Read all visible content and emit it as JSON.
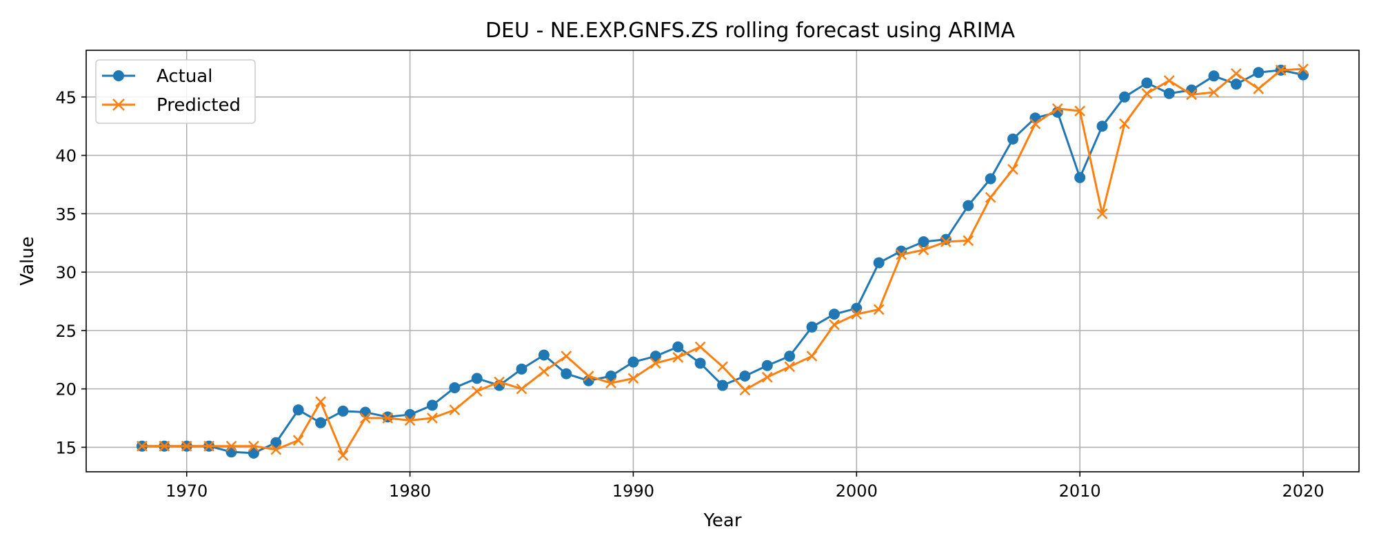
{
  "chart_data": {
    "type": "line",
    "title": "DEU - NE.EXP.GNFS.ZS rolling forecast using ARIMA",
    "xlabel": "Year",
    "ylabel": "Value",
    "xlim": [
      1965.5,
      2022.5
    ],
    "ylim": [
      12.9,
      49.0
    ],
    "xticks": [
      1970,
      1980,
      1990,
      2000,
      2010,
      2020
    ],
    "yticks": [
      15,
      20,
      25,
      30,
      35,
      40,
      45
    ],
    "grid": true,
    "legend_position": "top-left",
    "x": [
      1968,
      1969,
      1970,
      1971,
      1972,
      1973,
      1974,
      1975,
      1976,
      1977,
      1978,
      1979,
      1980,
      1981,
      1982,
      1983,
      1984,
      1985,
      1986,
      1987,
      1988,
      1989,
      1990,
      1991,
      1992,
      1993,
      1994,
      1995,
      1996,
      1997,
      1998,
      1999,
      2000,
      2001,
      2002,
      2003,
      2004,
      2005,
      2006,
      2007,
      2008,
      2009,
      2010,
      2011,
      2012,
      2013,
      2014,
      2015,
      2016,
      2017,
      2018,
      2019,
      2020
    ],
    "series": [
      {
        "name": "Actual",
        "color": "#1f77b4",
        "marker": "circle",
        "values": [
          15.1,
          15.1,
          15.1,
          15.1,
          14.6,
          14.5,
          15.4,
          18.2,
          17.1,
          18.1,
          18.0,
          17.6,
          17.8,
          18.6,
          20.1,
          20.9,
          20.3,
          21.7,
          22.9,
          21.3,
          20.7,
          21.1,
          22.3,
          22.8,
          23.6,
          22.2,
          20.3,
          21.1,
          22.0,
          22.8,
          25.3,
          26.4,
          26.9,
          30.8,
          31.8,
          32.6,
          32.8,
          35.7,
          38.0,
          41.4,
          43.2,
          43.7,
          38.1,
          42.5,
          45.0,
          46.2,
          45.3,
          45.6,
          46.8,
          46.1,
          47.1,
          47.3,
          46.9
        ]
      },
      {
        "name": "Predicted",
        "color": "#ff7f0e",
        "marker": "x",
        "values": [
          15.1,
          15.1,
          15.1,
          15.1,
          15.1,
          15.1,
          14.8,
          15.6,
          18.9,
          14.3,
          17.5,
          17.5,
          17.3,
          17.5,
          18.2,
          19.8,
          20.6,
          20.0,
          21.5,
          22.8,
          21.1,
          20.5,
          20.9,
          22.2,
          22.7,
          23.6,
          21.9,
          19.9,
          21.0,
          21.9,
          22.8,
          25.5,
          26.4,
          26.8,
          31.5,
          31.9,
          32.6,
          32.7,
          36.4,
          38.8,
          42.7,
          44.0,
          43.8,
          35.0,
          42.7,
          45.3,
          46.4,
          45.2,
          45.4,
          47.0,
          45.7,
          47.3,
          47.4
        ]
      }
    ]
  }
}
